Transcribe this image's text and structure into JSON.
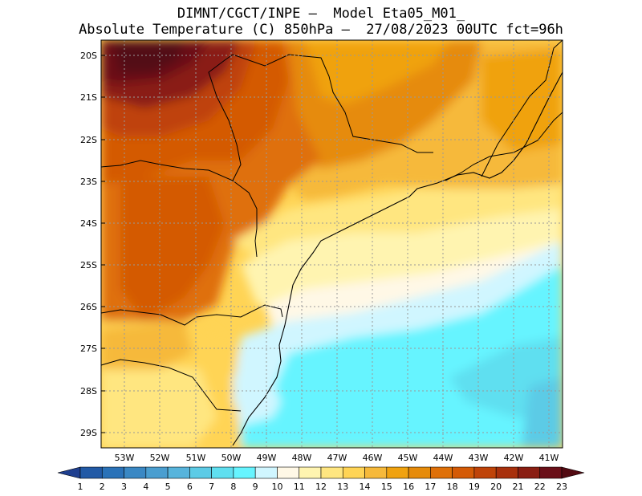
{
  "title": {
    "line1": "DIMNT/CGCT/INPE –  Model Eta05_M01_",
    "line2": "Absolute Temperature (C) 850hPa –  27/08/2023 00UTC fct=96h"
  },
  "axes": {
    "lat_labels": [
      "20S",
      "21S",
      "22S",
      "23S",
      "24S",
      "25S",
      "26S",
      "27S",
      "28S",
      "29S"
    ],
    "lon_labels": [
      "53W",
      "52W",
      "51W",
      "50W",
      "49W",
      "48W",
      "47W",
      "46W",
      "45W",
      "44W",
      "43W",
      "42W",
      "41W"
    ]
  },
  "colorbar": {
    "labels": [
      "1",
      "2",
      "3",
      "4",
      "5",
      "6",
      "7",
      "8",
      "9",
      "10",
      "11",
      "12",
      "13",
      "14",
      "15",
      "16",
      "17",
      "18",
      "19",
      "20",
      "21",
      "22",
      "23"
    ],
    "colors": [
      "#1f3f8f",
      "#225aa6",
      "#2a72b8",
      "#3a88c4",
      "#4a9ed0",
      "#57b4dc",
      "#5ccbe6",
      "#5fdff0",
      "#66f4ff",
      "#d0f6ff",
      "#fff8e6",
      "#fff4b0",
      "#ffe680",
      "#ffd455",
      "#f6b93a",
      "#f0a20f",
      "#e68b0a",
      "#df7008",
      "#d45a06",
      "#bf4308",
      "#a8300c",
      "#8a1e12",
      "#6a0f18",
      "#520a12"
    ]
  },
  "chart_data": {
    "type": "heatmap",
    "title": "DIMNT/CGCT/INPE – Model Eta05_M01_ / Absolute Temperature (C) 850hPa – 27/08/2023 00UTC fct=96h",
    "variable": "Absolute Temperature (C) 850hPa",
    "units": "C",
    "color_levels": [
      1,
      2,
      3,
      4,
      5,
      6,
      7,
      8,
      9,
      10,
      11,
      12,
      13,
      14,
      15,
      16,
      17,
      18,
      19,
      20,
      21,
      22,
      23
    ],
    "x_range_deg": [
      -53.6,
      -40.6
    ],
    "y_range_deg": [
      -29.4,
      -19.8
    ],
    "regions": [
      {
        "area": "NW corner (interior, ~20-21S 51-53W)",
        "value_c": 22
      },
      {
        "area": "interior west (~22-26S)",
        "value_c": 19
      },
      {
        "area": "NE interior (~20-23S 42-47W)",
        "value_c": 16
      },
      {
        "area": "coastal SP / PR",
        "value_c": 13
      },
      {
        "area": "offshore south (~26-29S 43-47W)",
        "value_c": 9
      },
      {
        "area": "SW interior (~27-29S 50-53W)",
        "value_c": 14
      }
    ]
  }
}
